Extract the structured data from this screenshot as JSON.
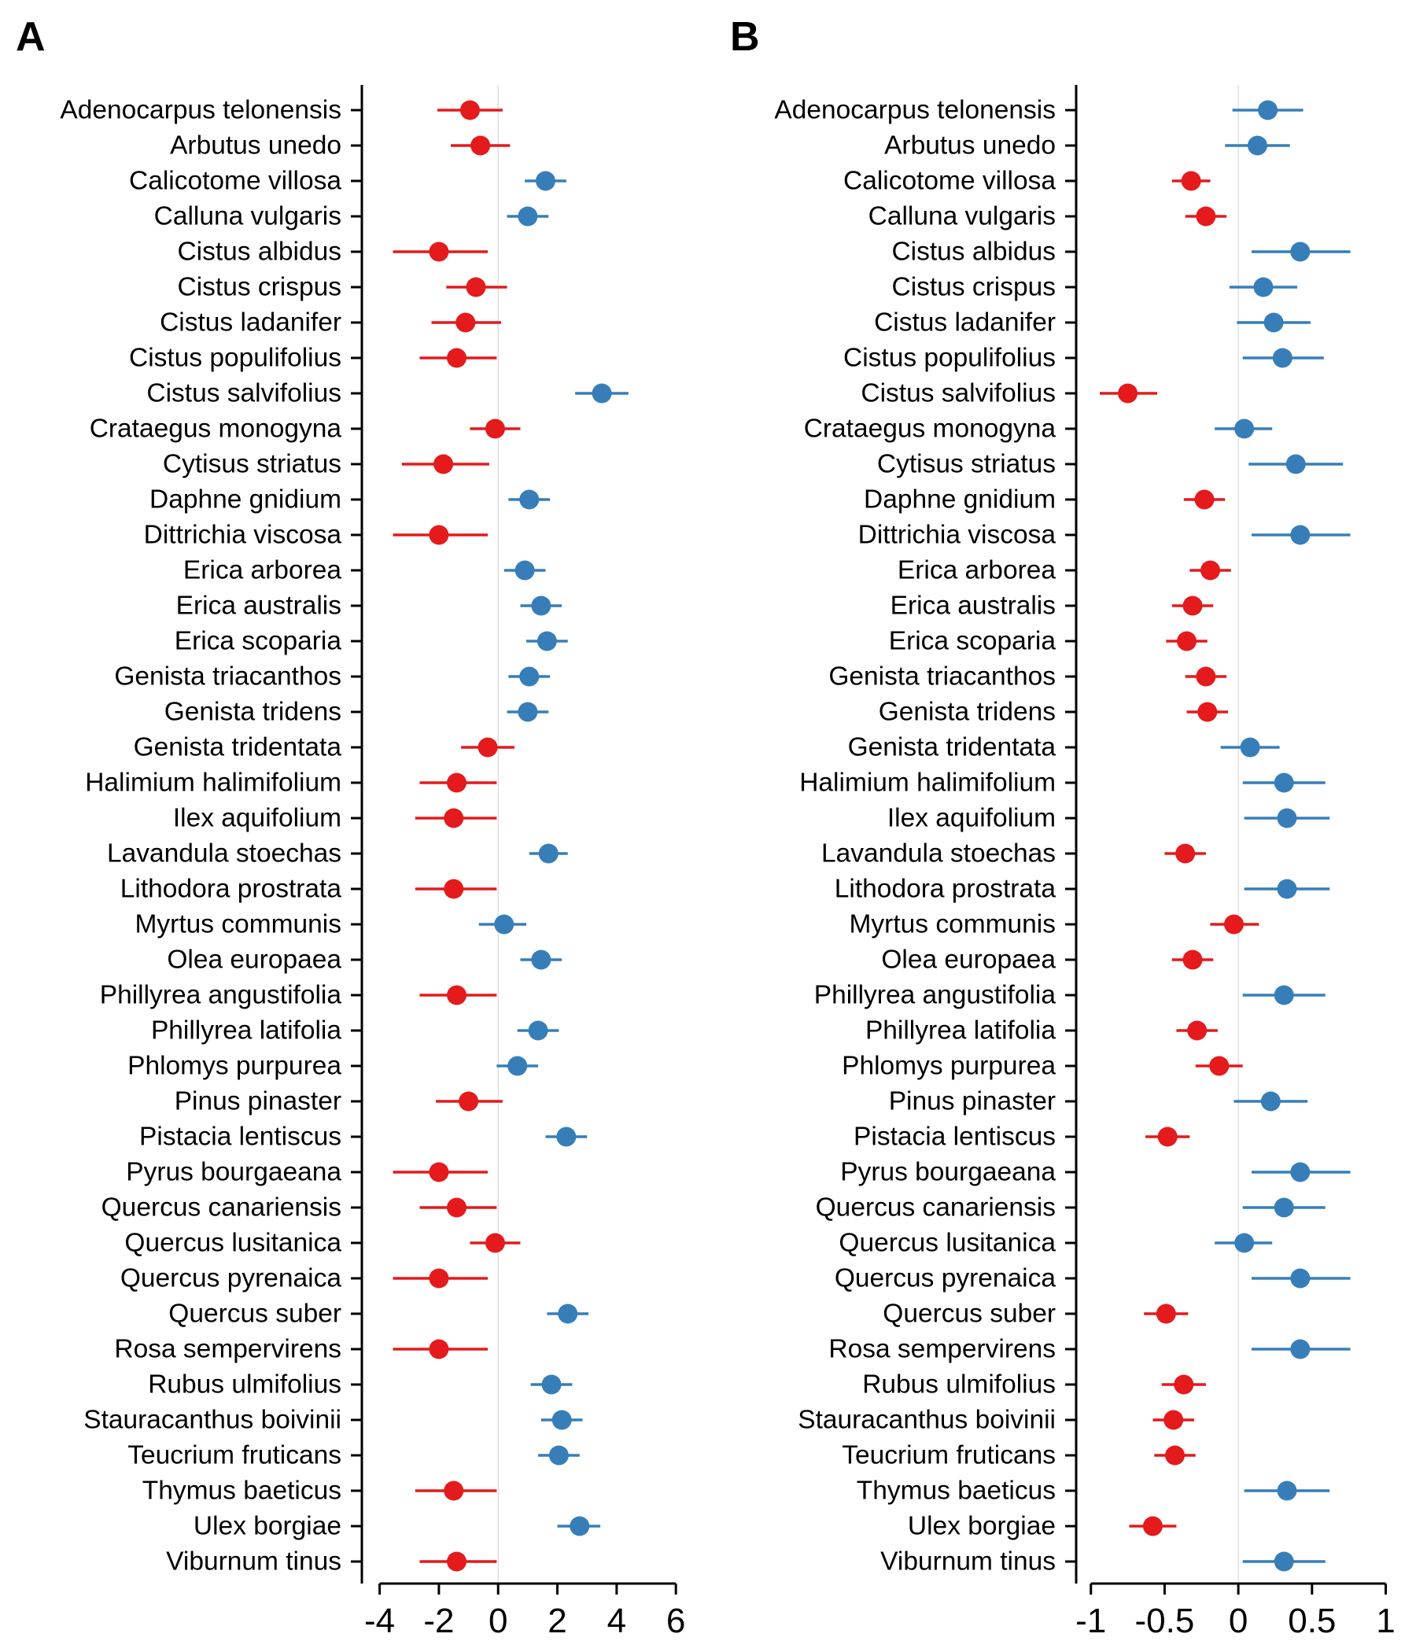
{
  "figure": {
    "panel_a_letter": "A",
    "panel_b_letter": "B"
  },
  "colors": {
    "negative": "#e41a1c",
    "positive": "#377eb8",
    "zero_line": "#e0e0e0"
  },
  "chart_data": [
    {
      "type": "scatter",
      "style": "point-range",
      "panel": "A",
      "xlim": [
        -4.6,
        6.5
      ],
      "xticks": [
        -4,
        -2,
        0,
        2,
        4,
        6
      ],
      "xtick_labels": [
        "-4",
        "-2",
        "0",
        "2",
        "4",
        "6"
      ],
      "zero_reference_line": true,
      "grid": false,
      "categories": [
        "Adenocarpus telonensis",
        "Arbutus unedo",
        "Calicotome villosa",
        "Calluna vulgaris",
        "Cistus albidus",
        "Cistus crispus",
        "Cistus ladanifer",
        "Cistus populifolius",
        "Cistus salvifolius",
        "Crataegus monogyna",
        "Cytisus striatus",
        "Daphne gnidium",
        "Dittrichia viscosa",
        "Erica arborea",
        "Erica australis",
        "Erica scoparia",
        "Genista triacanthos",
        "Genista tridens",
        "Genista tridentata",
        "Halimium halimifolium",
        "Ilex aquifolium",
        "Lavandula stoechas",
        "Lithodora prostrata",
        "Myrtus communis",
        "Olea europaea",
        "Phillyrea angustifolia",
        "Phillyrea latifolia",
        "Phlomys purpurea",
        "Pinus pinaster",
        "Pistacia lentiscus",
        "Pyrus bourgaeana",
        "Quercus canariensis",
        "Quercus lusitanica",
        "Quercus pyrenaica",
        "Quercus suber",
        "Rosa sempervirens",
        "Rubus ulmifolius",
        "Stauracanthus boivinii",
        "Teucrium fruticans",
        "Thymus baeticus",
        "Ulex borgiae",
        "Viburnum tinus"
      ],
      "estimate": [
        -0.95,
        -0.6,
        1.6,
        1.0,
        -2.0,
        -0.75,
        -1.1,
        -1.4,
        3.5,
        -0.1,
        -1.85,
        1.05,
        -2.0,
        0.9,
        1.45,
        1.65,
        1.05,
        1.0,
        -0.35,
        -1.4,
        -1.5,
        1.7,
        -1.5,
        0.2,
        1.45,
        -1.4,
        1.35,
        0.65,
        -1.0,
        2.3,
        -2.0,
        -1.4,
        -0.1,
        -2.0,
        2.35,
        -2.0,
        1.8,
        2.15,
        2.05,
        -1.5,
        2.75,
        -1.4
      ],
      "lower": [
        -2.05,
        -1.6,
        0.9,
        0.3,
        -3.55,
        -1.75,
        -2.25,
        -2.65,
        2.6,
        -0.95,
        -3.25,
        0.35,
        -3.55,
        0.2,
        0.75,
        0.95,
        0.35,
        0.3,
        -1.25,
        -2.65,
        -2.8,
        1.05,
        -2.8,
        -0.65,
        0.75,
        -2.65,
        0.65,
        -0.05,
        -2.1,
        1.6,
        -3.55,
        -2.65,
        -0.95,
        -3.55,
        1.65,
        -3.55,
        1.1,
        1.45,
        1.35,
        -2.8,
        2.0,
        -2.65
      ],
      "upper": [
        0.15,
        0.4,
        2.3,
        1.7,
        -0.35,
        0.3,
        0.1,
        -0.05,
        4.4,
        0.75,
        -0.3,
        1.75,
        -0.35,
        1.6,
        2.15,
        2.35,
        1.75,
        1.7,
        0.55,
        -0.05,
        -0.05,
        2.35,
        -0.05,
        0.95,
        2.15,
        -0.05,
        2.05,
        1.35,
        0.15,
        3.0,
        -0.35,
        -0.05,
        0.75,
        -0.35,
        3.05,
        -0.35,
        2.5,
        2.85,
        2.75,
        -0.05,
        3.45,
        -0.05
      ],
      "color_rule": "red when estimate < 0, blue when estimate > 0"
    },
    {
      "type": "scatter",
      "style": "point-range",
      "panel": "B",
      "xlim": [
        -1.1,
        1.12
      ],
      "xticks": [
        -1,
        -0.5,
        0,
        0.5,
        1
      ],
      "xtick_labels": [
        "-1",
        "-0.5",
        "0",
        "0.5",
        "1"
      ],
      "zero_reference_line": true,
      "grid": false,
      "categories": [
        "Adenocarpus telonensis",
        "Arbutus unedo",
        "Calicotome villosa",
        "Calluna vulgaris",
        "Cistus albidus",
        "Cistus crispus",
        "Cistus ladanifer",
        "Cistus populifolius",
        "Cistus salvifolius",
        "Crataegus monogyna",
        "Cytisus striatus",
        "Daphne gnidium",
        "Dittrichia viscosa",
        "Erica arborea",
        "Erica australis",
        "Erica scoparia",
        "Genista triacanthos",
        "Genista tridens",
        "Genista tridentata",
        "Halimium halimifolium",
        "Ilex aquifolium",
        "Lavandula stoechas",
        "Lithodora prostrata",
        "Myrtus communis",
        "Olea europaea",
        "Phillyrea angustifolia",
        "Phillyrea latifolia",
        "Phlomys purpurea",
        "Pinus pinaster",
        "Pistacia lentiscus",
        "Pyrus bourgaeana",
        "Quercus canariensis",
        "Quercus lusitanica",
        "Quercus pyrenaica",
        "Quercus suber",
        "Rosa sempervirens",
        "Rubus ulmifolius",
        "Stauracanthus boivinii",
        "Teucrium fruticans",
        "Thymus baeticus",
        "Ulex borgiae",
        "Viburnum tinus"
      ],
      "estimate": [
        0.2,
        0.13,
        -0.32,
        -0.22,
        0.42,
        0.17,
        0.24,
        0.3,
        -0.75,
        0.04,
        0.39,
        -0.23,
        0.42,
        -0.19,
        -0.31,
        -0.35,
        -0.22,
        -0.21,
        0.08,
        0.31,
        0.33,
        -0.36,
        0.33,
        -0.03,
        -0.31,
        0.31,
        -0.28,
        -0.13,
        0.22,
        -0.48,
        0.42,
        0.31,
        0.04,
        0.42,
        -0.49,
        0.42,
        -0.37,
        -0.44,
        -0.43,
        0.33,
        -0.58,
        0.31
      ],
      "lower": [
        -0.04,
        -0.09,
        -0.45,
        -0.36,
        0.09,
        -0.06,
        -0.01,
        0.03,
        -0.94,
        -0.16,
        0.07,
        -0.37,
        0.09,
        -0.33,
        -0.45,
        -0.49,
        -0.36,
        -0.35,
        -0.12,
        0.03,
        0.04,
        -0.5,
        0.04,
        -0.19,
        -0.45,
        0.03,
        -0.42,
        -0.29,
        -0.03,
        -0.63,
        0.09,
        0.03,
        -0.16,
        0.09,
        -0.64,
        0.09,
        -0.52,
        -0.58,
        -0.57,
        0.04,
        -0.74,
        0.03
      ],
      "upper": [
        0.44,
        0.35,
        -0.19,
        -0.08,
        0.76,
        0.4,
        0.49,
        0.58,
        -0.55,
        0.23,
        0.71,
        -0.09,
        0.76,
        -0.05,
        -0.17,
        -0.21,
        -0.08,
        -0.07,
        0.28,
        0.59,
        0.62,
        -0.22,
        0.62,
        0.14,
        -0.17,
        0.59,
        -0.14,
        0.03,
        0.47,
        -0.33,
        0.76,
        0.59,
        0.23,
        0.76,
        -0.34,
        0.76,
        -0.22,
        -0.3,
        -0.29,
        0.62,
        -0.42,
        0.59
      ],
      "color_rule": "red when estimate < 0, blue when estimate > 0"
    }
  ]
}
